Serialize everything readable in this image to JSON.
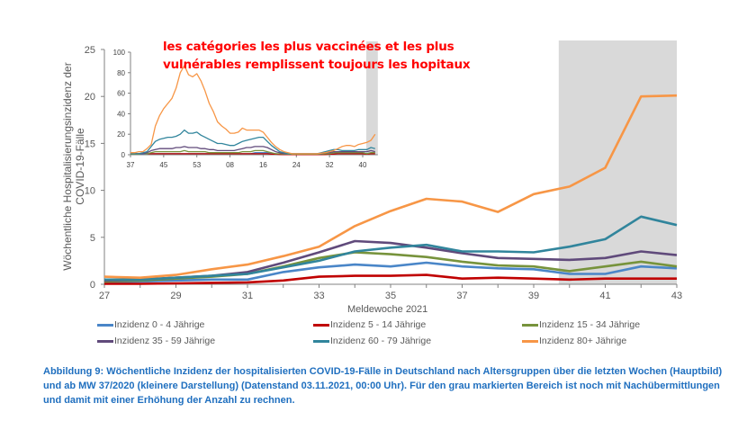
{
  "annotation": [
    "les catégories les plus vaccinées et les plus",
    "vulnérables remplissent toujours les hopitaux"
  ],
  "colors": {
    "0-4": "#4a86c8",
    "5-14": "#c00000",
    "15-34": "#77933c",
    "35-59": "#604a7b",
    "60-79": "#31859c",
    "80+": "#f79646",
    "shade": "#d9d9d9",
    "caption": "#1f6fbf",
    "annotation": "#ff0000"
  },
  "caption": "Abbildung 9: Wöchentliche Inzidenz der hospitalisierten COVID-19-Fälle in Deutschland nach Altersgruppen über die letzten Wochen (Hauptbild) und ab MW 37/2020 (kleinere Darstellung) (Datenstand 03.11.2021, 00:00 Uhr). Für den grau markierten Bereich ist noch mit Nachübermittlungen und damit mit einer Erhöhung der Anzahl zu rechnen.",
  "chart_data": [
    {
      "type": "line",
      "xlabel": "Meldewoche 2021",
      "ylabel": "Wöchentliche Hospitalisierungsinzidenz der COVID-19-Fälle",
      "x": [
        27,
        28,
        29,
        30,
        31,
        32,
        33,
        34,
        35,
        36,
        37,
        38,
        39,
        40,
        41,
        42,
        43
      ],
      "xticks": [
        "27",
        "29",
        "31",
        "33",
        "35",
        "37",
        "39",
        "41",
        "43"
      ],
      "yticks": [
        "0",
        "5",
        "10",
        "15",
        "20",
        "25"
      ],
      "ylim": [
        0,
        25
      ],
      "shaded_from_week": 39.7,
      "legend": "bottom",
      "grid": false,
      "series": [
        {
          "key": "0-4",
          "name": "Inzidenz 0 - 4 Jährige",
          "values": [
            0.2,
            0.3,
            0.4,
            0.5,
            0.5,
            1.3,
            1.8,
            2.1,
            1.9,
            2.3,
            1.9,
            1.7,
            1.6,
            1.1,
            1.1,
            1.9,
            1.7
          ]
        },
        {
          "key": "5-14",
          "name": "Inzidenz 5 - 14 Jährige",
          "values": [
            0.05,
            0.05,
            0.1,
            0.15,
            0.2,
            0.4,
            0.8,
            0.9,
            0.9,
            1.0,
            0.6,
            0.7,
            0.6,
            0.5,
            0.6,
            0.6,
            0.6
          ]
        },
        {
          "key": "15-34",
          "name": "Inzidenz 15 - 34 Jährige",
          "values": [
            0.3,
            0.4,
            0.6,
            0.8,
            1.1,
            1.9,
            2.8,
            3.4,
            3.2,
            2.9,
            2.4,
            2.0,
            1.9,
            1.4,
            1.9,
            2.4,
            1.9
          ]
        },
        {
          "key": "35-59",
          "name": "Inzidenz 35 - 59 Jährige",
          "values": [
            0.4,
            0.5,
            0.7,
            0.9,
            1.3,
            2.3,
            3.4,
            4.6,
            4.4,
            3.9,
            3.3,
            2.8,
            2.7,
            2.6,
            2.8,
            3.5,
            3.1
          ]
        },
        {
          "key": "60-79",
          "name": "Inzidenz 60 - 79 Jährige",
          "values": [
            0.5,
            0.5,
            0.7,
            0.9,
            1.1,
            1.8,
            2.5,
            3.5,
            3.9,
            4.2,
            3.5,
            3.5,
            3.4,
            4.0,
            4.8,
            7.2,
            6.3
          ]
        },
        {
          "key": "80+",
          "name": "Inzidenz 80+ Jährige",
          "values": [
            0.8,
            0.7,
            1.0,
            1.6,
            2.1,
            3.0,
            4.0,
            6.2,
            7.8,
            9.1,
            8.8,
            7.7,
            9.6,
            10.4,
            12.4,
            20.0,
            20.1
          ]
        }
      ]
    },
    {
      "type": "line",
      "xticks": [
        "37",
        "45",
        "53",
        "08",
        "16",
        "24",
        "32",
        "40"
      ],
      "yticks": [
        "0",
        "20",
        "40",
        "60",
        "80",
        "100"
      ],
      "ylim": [
        0,
        100
      ],
      "series": [
        {
          "key": "0-4",
          "values": [
            0.5,
            0.5,
            0.5,
            0.5,
            1,
            1,
            1,
            1,
            1,
            1,
            1,
            1,
            1,
            1,
            1,
            1,
            1,
            1,
            1,
            1,
            1,
            1,
            1,
            1,
            1,
            1,
            1,
            1,
            1,
            1,
            2,
            2,
            2,
            2,
            1,
            1,
            0.5,
            0.3,
            0.3,
            0.3,
            0.3,
            0.3,
            0.3,
            0.3,
            0.3,
            0.3,
            0.3,
            0.5,
            1,
            1,
            2,
            2,
            2,
            2,
            2,
            2,
            2,
            1,
            2,
            2
          ]
        },
        {
          "key": "5-14",
          "values": [
            1,
            1,
            1,
            1,
            1,
            1,
            1,
            1,
            1,
            1,
            1,
            1,
            1,
            1,
            1,
            1,
            1,
            1,
            1,
            1,
            1,
            1,
            1,
            1,
            1,
            1,
            1,
            1,
            1,
            1,
            1,
            1,
            1,
            1,
            0.5,
            0.5,
            0.3,
            0.2,
            0.2,
            0.2,
            0.2,
            0.2,
            0.2,
            0.2,
            0.2,
            0.2,
            0.2,
            0.3,
            0.5,
            0.5,
            1,
            1,
            1,
            1,
            1,
            1,
            1,
            0.5,
            1,
            1
          ]
        },
        {
          "key": "15-34",
          "values": [
            0.5,
            0.5,
            0.5,
            1,
            1,
            2,
            3,
            3,
            3,
            3,
            3,
            3,
            3,
            4,
            3,
            3,
            3,
            3,
            3,
            2,
            2,
            2,
            2,
            2,
            2,
            2,
            2,
            3,
            3,
            3,
            4,
            4,
            4,
            3,
            2,
            1,
            1,
            0.5,
            0.5,
            0.5,
            0.5,
            0.5,
            0.5,
            0.5,
            0.5,
            0.5,
            0.5,
            1,
            1,
            2,
            2,
            2,
            2,
            2,
            2,
            2,
            2,
            1,
            2,
            2
          ]
        },
        {
          "key": "35-59",
          "values": [
            1,
            1,
            1,
            1,
            2,
            4,
            5,
            6,
            6,
            6,
            6,
            7,
            7,
            8,
            7,
            7,
            7,
            6,
            6,
            5,
            5,
            4,
            4,
            4,
            4,
            4,
            5,
            6,
            7,
            7,
            8,
            8,
            8,
            7,
            5,
            3,
            2,
            1,
            1,
            1,
            1,
            1,
            1,
            1,
            1,
            1,
            1,
            2,
            2,
            3,
            3,
            3,
            3,
            3,
            3,
            3,
            3,
            3,
            4,
            3
          ]
        },
        {
          "key": "60-79",
          "values": [
            1,
            1,
            1,
            2,
            3,
            8,
            13,
            15,
            16,
            17,
            17,
            18,
            20,
            24,
            21,
            21,
            22,
            19,
            17,
            15,
            13,
            11,
            11,
            10,
            9,
            9,
            11,
            13,
            14,
            15,
            16,
            17,
            17,
            13,
            9,
            6,
            3,
            2,
            1,
            1,
            1,
            1,
            1,
            1,
            1,
            1,
            2,
            3,
            4,
            5,
            5,
            4,
            4,
            4,
            4,
            5,
            5,
            5,
            7,
            6
          ]
        },
        {
          "key": "80+",
          "values": [
            2,
            2,
            3,
            3,
            6,
            10,
            28,
            38,
            45,
            50,
            55,
            65,
            80,
            87,
            78,
            76,
            79,
            72,
            62,
            50,
            42,
            32,
            28,
            25,
            21,
            21,
            22,
            26,
            24,
            24,
            24,
            24,
            22,
            17,
            12,
            8,
            5,
            3,
            2,
            1,
            1,
            1,
            1,
            1,
            1,
            1,
            1.5,
            2,
            3,
            4,
            6,
            8,
            9,
            9,
            8,
            10,
            11,
            12,
            14,
            20
          ]
        }
      ]
    }
  ]
}
